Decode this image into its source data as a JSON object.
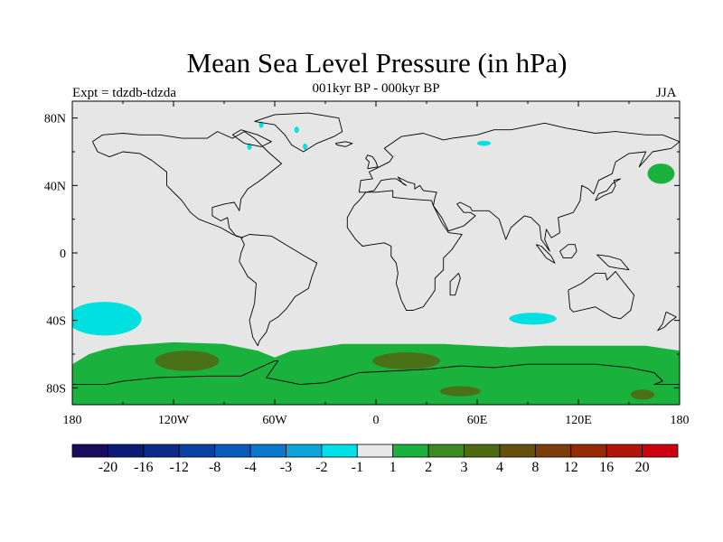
{
  "chart_data": {
    "type": "map",
    "title": "Mean Sea Level Pressure (in hPa)",
    "left_label": "Expt = tdzdb-tdzda",
    "center_label": "001kyr BP - 000kyr BP",
    "right_label": "JJA",
    "projection": "cylindrical equidistant",
    "xlim": [
      -180,
      180
    ],
    "ylim": [
      -90,
      90
    ],
    "x_ticks": [
      {
        "value": -180,
        "label": "180"
      },
      {
        "value": -120,
        "label": "120W"
      },
      {
        "value": -60,
        "label": "60W"
      },
      {
        "value": 0,
        "label": "0"
      },
      {
        "value": 60,
        "label": "60E"
      },
      {
        "value": 120,
        "label": "120E"
      },
      {
        "value": 180,
        "label": "180"
      }
    ],
    "y_ticks": [
      {
        "value": 80,
        "label": "80N"
      },
      {
        "value": 40,
        "label": "40N"
      },
      {
        "value": 0,
        "label": "0"
      },
      {
        "value": -40,
        "label": "40S"
      },
      {
        "value": -80,
        "label": "80S"
      }
    ],
    "background_level": "-1 to 1",
    "regions": [
      {
        "name": "northeast-pacific-low",
        "lon": -161,
        "lat": -39,
        "rlon": 22,
        "rlat": 10,
        "level": "-2 to -1",
        "color": "#00e0e0"
      },
      {
        "name": "indian-ocean-low",
        "lon": 93,
        "lat": -39,
        "rlon": 14,
        "rlat": 3.5,
        "level": "-2 to -1",
        "color": "#00e0e0"
      },
      {
        "name": "caspian-low",
        "lon": 64,
        "lat": 65,
        "rlon": 4,
        "rlat": 1.5,
        "level": "-2 to -1",
        "color": "#00e0e0"
      },
      {
        "name": "northwest-pacific-high",
        "lon": 169,
        "lat": 47,
        "rlon": 8,
        "rlat": 6,
        "level": "1 to 2",
        "color": "#1ab13d"
      },
      {
        "name": "south-pacific-high",
        "lon": -112,
        "lat": -64,
        "rlon": 19,
        "rlat": 6,
        "level": "3 to 4",
        "color": "#4a7018"
      },
      {
        "name": "south-atlantic-high",
        "lon": 18,
        "lat": -64,
        "rlon": 20,
        "rlat": 5,
        "level": "3 to 4",
        "color": "#4a7018"
      },
      {
        "name": "south-indian-high",
        "lon": 50,
        "lat": -82,
        "rlon": 12,
        "rlat": 3,
        "level": "3 to 4",
        "color": "#4a7018"
      },
      {
        "name": "antarctic-high-east",
        "lon": 158,
        "lat": -84,
        "rlon": 7,
        "rlat": 3,
        "level": "3 to 4",
        "color": "#4a7018"
      }
    ],
    "southern_band": {
      "level": "1 to 2",
      "color": "#1ab13d",
      "north_edge_lat": -53
    },
    "colorbar": {
      "colors": [
        "#1a0b5e",
        "#0b1a76",
        "#0b2a8c",
        "#0a40a4",
        "#0a5cbc",
        "#0a78cc",
        "#0aa4dc",
        "#00e0e8",
        "#e8e8e8",
        "#1ab13d",
        "#3d8a22",
        "#4f6b12",
        "#665010",
        "#7d3c0c",
        "#962a06",
        "#b2150a",
        "#cc0010"
      ],
      "labels": [
        "-20",
        "-16",
        "-12",
        "-8",
        "-4",
        "-3",
        "-2",
        "-1",
        "1",
        "2",
        "3",
        "4",
        "8",
        "12",
        "16",
        "20"
      ]
    }
  }
}
